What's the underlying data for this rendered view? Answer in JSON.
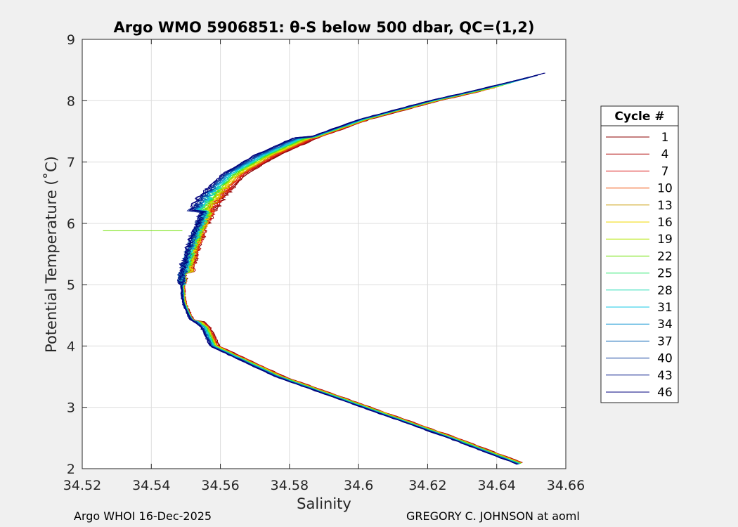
{
  "chart_data": {
    "type": "line",
    "title": "Argo WMO 5906851: θ-S below 500 dbar,  QC=(1,2)",
    "xlabel": "Salinity",
    "ylabel": "Potential Temperature (˚C)",
    "xlim": [
      34.52,
      34.66
    ],
    "ylim": [
      2,
      9
    ],
    "xticks": [
      "34.52",
      "34.54",
      "34.56",
      "34.58",
      "34.6",
      "34.62",
      "34.64",
      "34.66"
    ],
    "yticks": [
      "2",
      "3",
      "4",
      "5",
      "6",
      "7",
      "8",
      "9"
    ],
    "grid": true,
    "legend": {
      "title": "Cycle #",
      "placement": "right-outside",
      "entries": [
        {
          "label": "1",
          "color": "#8b0000"
        },
        {
          "label": "4",
          "color": "#b41010"
        },
        {
          "label": "7",
          "color": "#dc1a1a"
        },
        {
          "label": "10",
          "color": "#f04a00"
        },
        {
          "label": "13",
          "color": "#c89a00"
        },
        {
          "label": "16",
          "color": "#f0d800"
        },
        {
          "label": "19",
          "color": "#b4e600"
        },
        {
          "label": "22",
          "color": "#6ee000"
        },
        {
          "label": "25",
          "color": "#1ee664"
        },
        {
          "label": "28",
          "color": "#1edcb4"
        },
        {
          "label": "31",
          "color": "#14c8e6"
        },
        {
          "label": "34",
          "color": "#1496d2"
        },
        {
          "label": "37",
          "color": "#0a64b4"
        },
        {
          "label": "40",
          "color": "#0a3c9b"
        },
        {
          "label": "43",
          "color": "#081c8c"
        },
        {
          "label": "46",
          "color": "#00007d"
        }
      ]
    },
    "base_profile": {
      "theta": [
        2.05,
        2.5,
        3.0,
        3.5,
        4.0,
        4.3,
        4.45,
        4.7,
        5.0,
        5.3,
        5.6,
        5.9,
        6.2,
        6.5,
        6.8,
        7.1,
        7.4,
        7.7,
        8.0,
        8.2,
        8.45
      ],
      "salinity": [
        34.647,
        34.626,
        34.601,
        34.576,
        34.557,
        34.5545,
        34.5515,
        34.5495,
        34.549,
        34.549,
        34.5505,
        34.5525,
        34.555,
        34.559,
        34.5645,
        34.5735,
        34.5855,
        34.6005,
        34.6205,
        34.636,
        34.654
      ]
    },
    "outlier": {
      "cycle": "22",
      "theta": 5.88,
      "salinity_from": 34.526,
      "salinity_to": 34.549
    }
  },
  "footer": {
    "left": "Argo WHOI 16-Dec-2025",
    "right": "GREGORY C. JOHNSON at aoml"
  }
}
